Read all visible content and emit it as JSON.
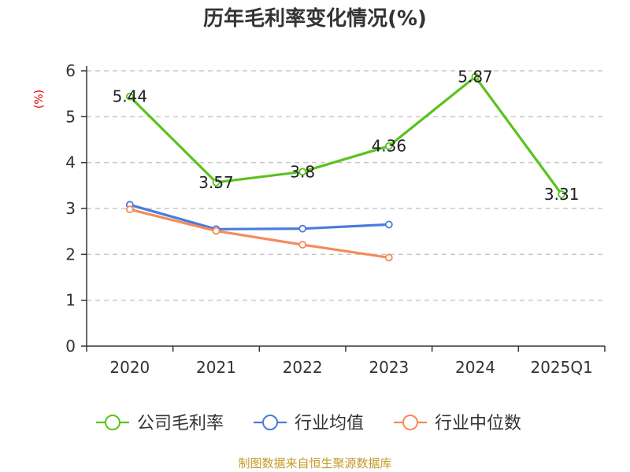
{
  "chart_data": {
    "type": "line",
    "title": "历年毛利率变化情况(%)",
    "ylabel": "(%)",
    "xlabel": "",
    "categories": [
      "2020",
      "2021",
      "2022",
      "2023",
      "2024",
      "2025Q1"
    ],
    "ylim": [
      0,
      6
    ],
    "yticks": [
      0,
      1,
      2,
      3,
      4,
      5,
      6
    ],
    "grid": true,
    "legend_position": "bottom",
    "series": [
      {
        "name": "公司毛利率",
        "color": "#5ac21e",
        "values": [
          5.44,
          3.57,
          3.8,
          4.36,
          5.87,
          3.31
        ],
        "labels": [
          "5.44",
          "3.57",
          "3.8",
          "4.36",
          "5.87",
          "3.31"
        ]
      },
      {
        "name": "行业均值",
        "color": "#4a7bdc",
        "values": [
          3.08,
          2.55,
          2.56,
          2.65,
          null,
          null
        ]
      },
      {
        "name": "行业中位数",
        "color": "#f58a5a",
        "values": [
          2.98,
          2.51,
          2.21,
          1.93,
          null,
          null
        ]
      }
    ]
  },
  "source": "制图数据来自恒生聚源数据库"
}
